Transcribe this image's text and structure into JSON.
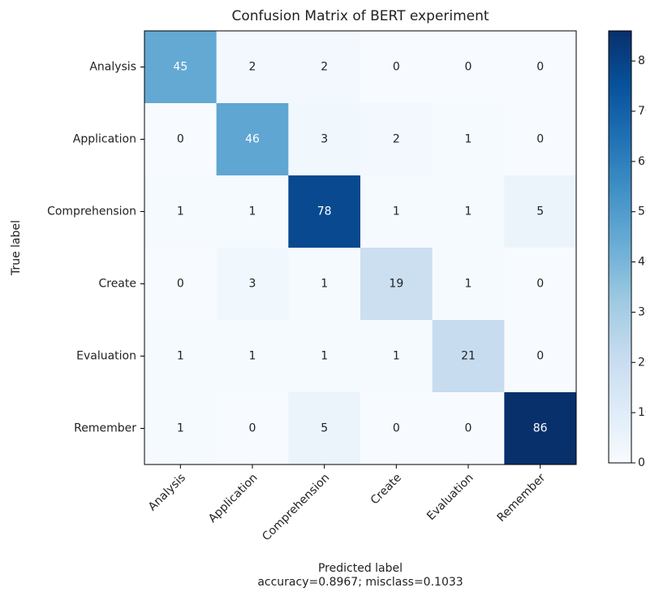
{
  "chart_data": {
    "type": "heatmap",
    "title": "Confusion Matrix of BERT experiment",
    "x_label": "Predicted label",
    "y_label": "True label",
    "annotation": "accuracy=0.8967; misclass=0.1033",
    "x_categories": [
      "Analysis",
      "Application",
      "Comprehension",
      "Create",
      "Evaluation",
      "Remember"
    ],
    "y_categories": [
      "Analysis",
      "Application",
      "Comprehension",
      "Create",
      "Evaluation",
      "Remember"
    ],
    "values": [
      [
        45,
        2,
        2,
        0,
        0,
        0
      ],
      [
        0,
        46,
        3,
        2,
        1,
        0
      ],
      [
        1,
        1,
        78,
        1,
        1,
        5
      ],
      [
        0,
        3,
        1,
        19,
        1,
        0
      ],
      [
        1,
        1,
        1,
        1,
        21,
        0
      ],
      [
        1,
        0,
        5,
        0,
        0,
        86
      ]
    ],
    "colormap": "Blues",
    "zlim": [
      0,
      86
    ],
    "zticks": [
      0,
      10,
      20,
      30,
      40,
      50,
      60,
      70,
      80
    ]
  }
}
